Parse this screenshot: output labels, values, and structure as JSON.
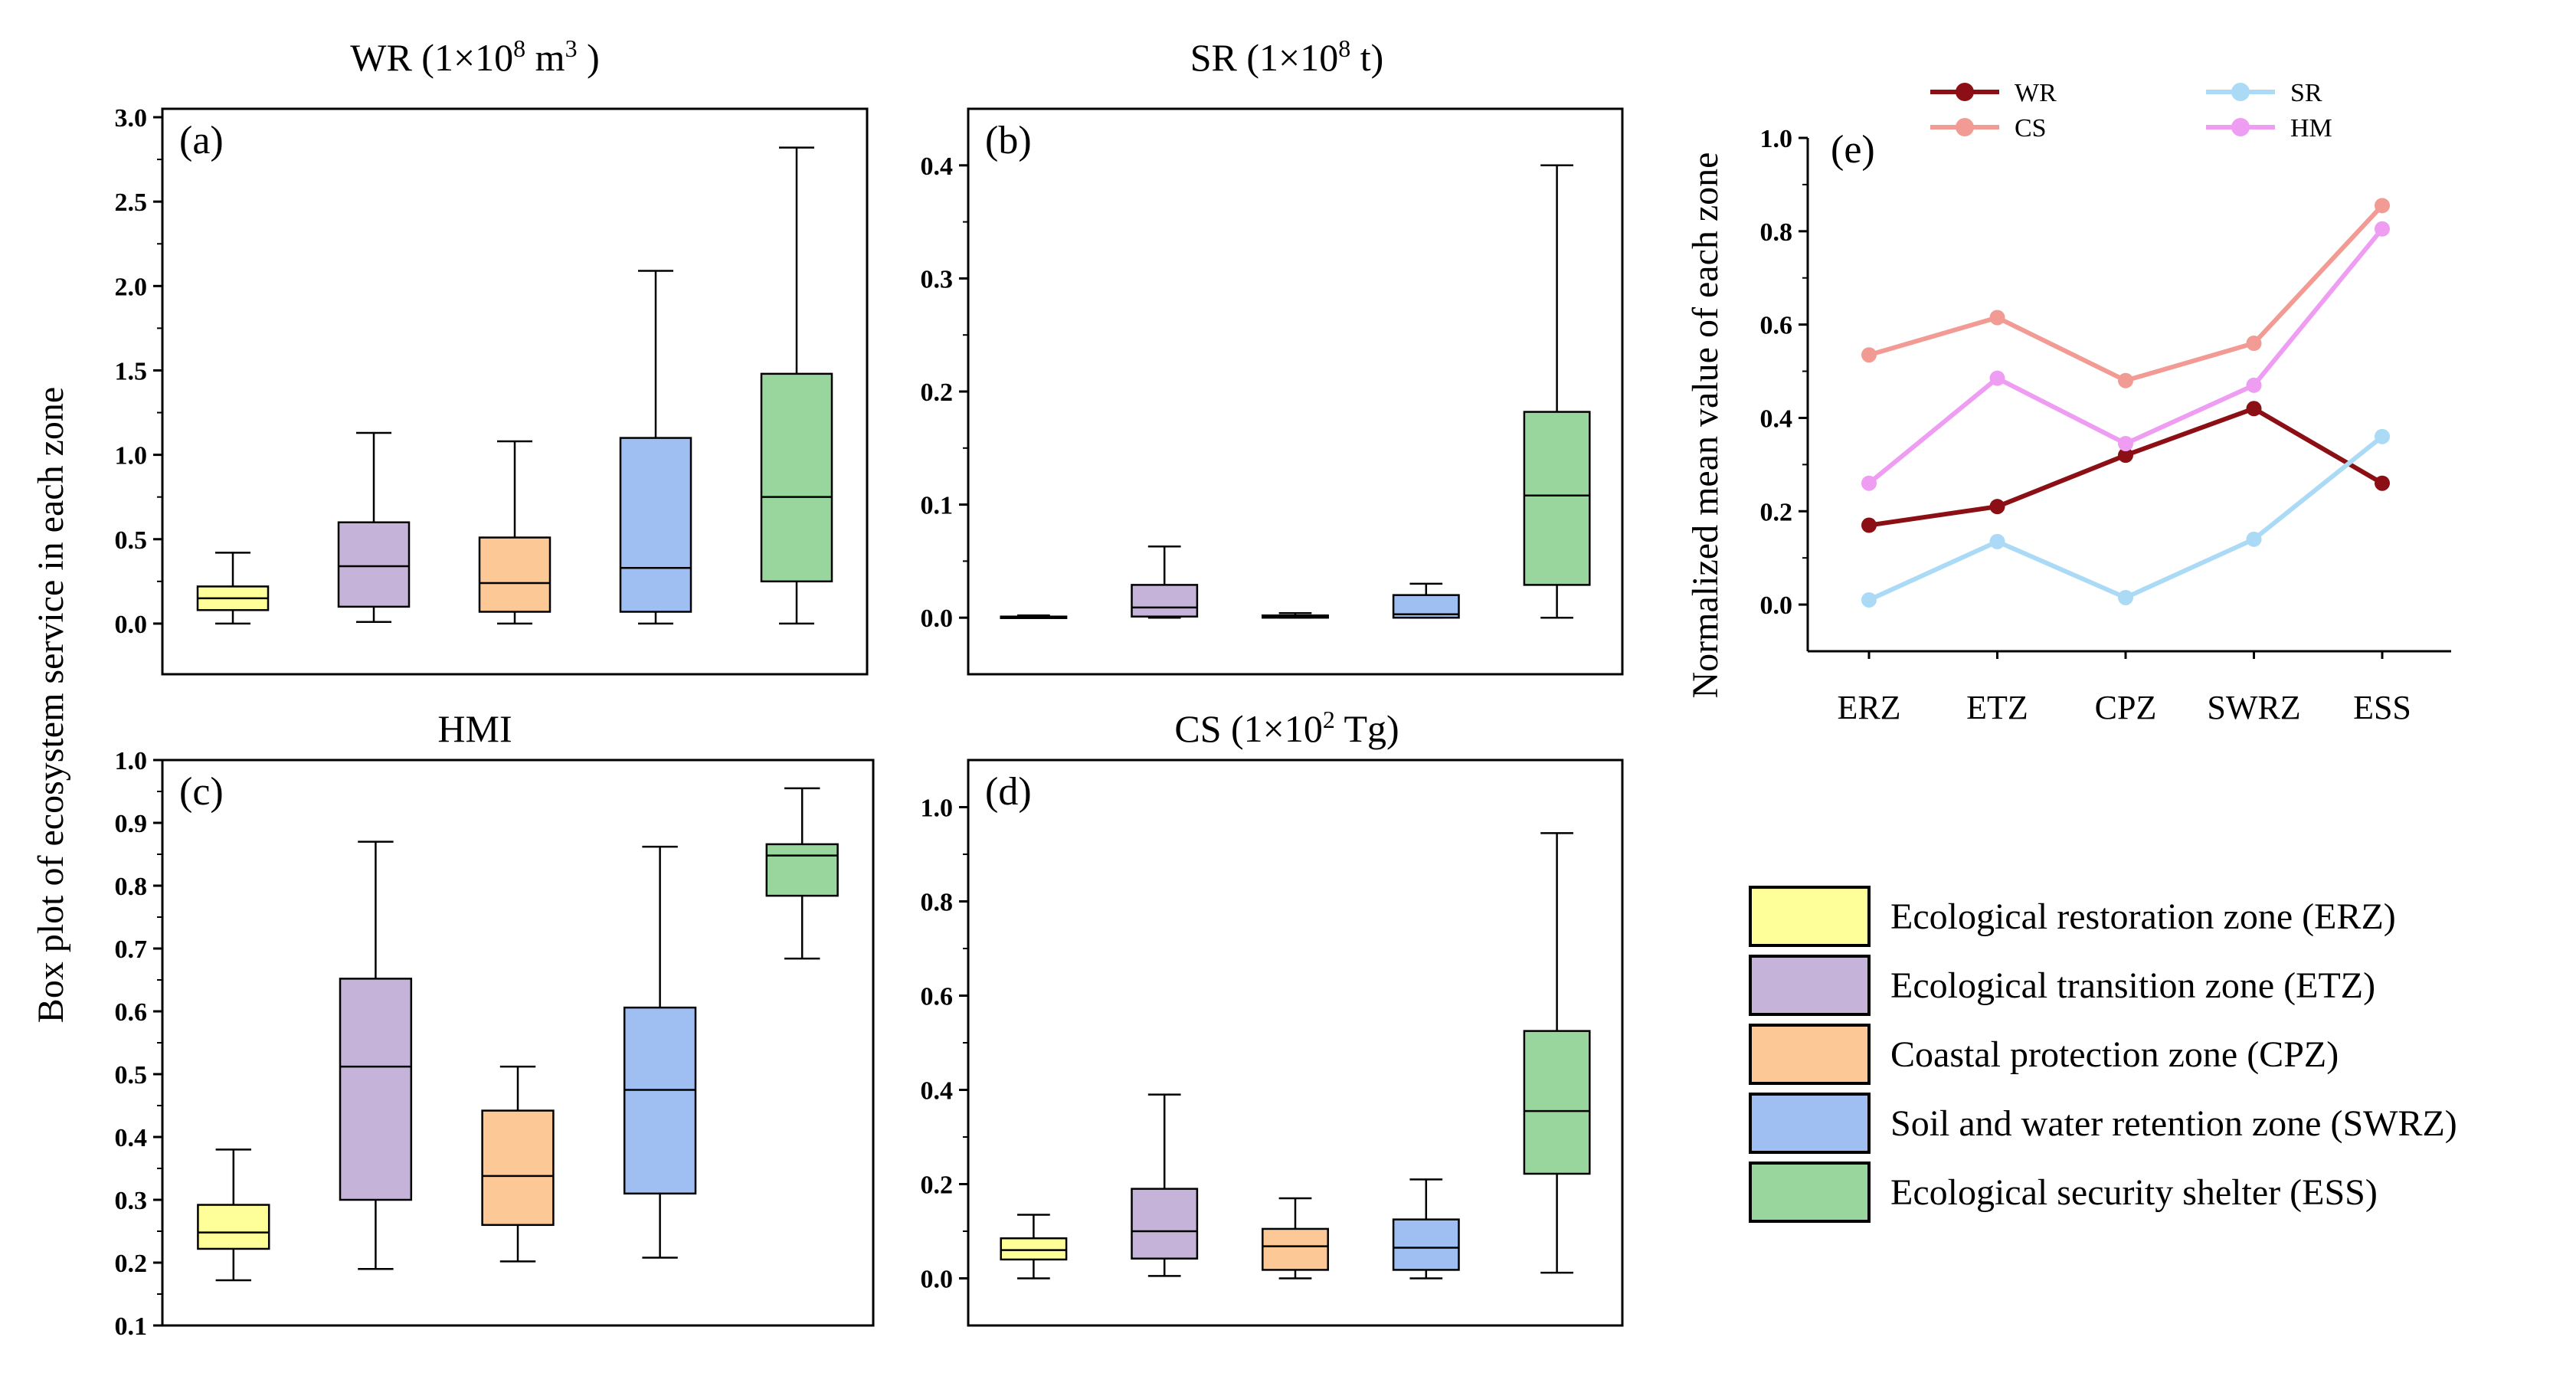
{
  "figure": {
    "y_axis_label": "Box plot of ecosystem service in each zone"
  },
  "zones": [
    {
      "code": "ERZ",
      "name": "Ecological restoration zone (ERZ)",
      "color": "#ffff99"
    },
    {
      "code": "ETZ",
      "name": "Ecological transition zone (ETZ)",
      "color": "#c5b3d9"
    },
    {
      "code": "CPZ",
      "name": "Coastal protection zone (CPZ)",
      "color": "#fcc996"
    },
    {
      "code": "SWRZ",
      "name": "Soil and water retention zone (SWRZ)",
      "color": "#9fbef2"
    },
    {
      "code": "ESS",
      "name": "Ecological security shelter (ESS)",
      "color": "#99d69d"
    }
  ],
  "chart_data": [
    {
      "id": "a",
      "panel_label": "(a)",
      "type": "box",
      "title_main": "WR (1×10",
      "title_sup": "8",
      "title_tail": " m",
      "title_sup2": "3",
      "title_end": " )",
      "ylim": [
        -0.3,
        3.05
      ],
      "ticks": [
        "0.0",
        "0.5",
        "1.0",
        "1.5",
        "2.0",
        "2.5",
        "3.0"
      ],
      "tick_values": [
        0,
        0.5,
        1.0,
        1.5,
        2.0,
        2.5,
        3.0
      ],
      "boxes": [
        {
          "zone": "ERZ",
          "min": 0.0,
          "q1": 0.08,
          "median": 0.15,
          "q3": 0.22,
          "max": 0.42
        },
        {
          "zone": "ETZ",
          "min": 0.01,
          "q1": 0.1,
          "median": 0.34,
          "q3": 0.6,
          "max": 1.13
        },
        {
          "zone": "CPZ",
          "min": 0.0,
          "q1": 0.07,
          "median": 0.24,
          "q3": 0.51,
          "max": 1.08
        },
        {
          "zone": "SWRZ",
          "min": 0.0,
          "q1": 0.07,
          "median": 0.33,
          "q3": 1.1,
          "max": 2.09
        },
        {
          "zone": "ESS",
          "min": 0.0,
          "q1": 0.25,
          "median": 0.75,
          "q3": 1.48,
          "max": 2.82
        }
      ]
    },
    {
      "id": "b",
      "panel_label": "(b)",
      "type": "box",
      "title_main": "SR (1×10",
      "title_sup": "8",
      "title_tail": " t)",
      "title_sup2": "",
      "title_end": "",
      "ylim": [
        -0.05,
        0.45
      ],
      "ticks": [
        "0.0",
        "0.1",
        "0.2",
        "0.3",
        "0.4"
      ],
      "tick_values": [
        0,
        0.1,
        0.2,
        0.3,
        0.4
      ],
      "boxes": [
        {
          "zone": "ERZ",
          "min": 0.0,
          "q1": 0.0,
          "median": 0.0,
          "q3": 0.001,
          "max": 0.002
        },
        {
          "zone": "ETZ",
          "min": 0.0,
          "q1": 0.001,
          "median": 0.009,
          "q3": 0.029,
          "max": 0.063
        },
        {
          "zone": "CPZ",
          "min": 0.0,
          "q1": 0.0,
          "median": 0.001,
          "q3": 0.002,
          "max": 0.004
        },
        {
          "zone": "SWRZ",
          "min": 0.0,
          "q1": 0.0,
          "median": 0.003,
          "q3": 0.02,
          "max": 0.03
        },
        {
          "zone": "ESS",
          "min": 0.0,
          "q1": 0.029,
          "median": 0.108,
          "q3": 0.182,
          "max": 0.4
        }
      ]
    },
    {
      "id": "c",
      "panel_label": "(c)",
      "type": "box",
      "title_main": "HMI",
      "title_sup": "",
      "title_tail": "",
      "title_sup2": "",
      "title_end": "",
      "ylim": [
        0.1,
        1.0
      ],
      "ticks": [
        "0.1",
        "0.2",
        "0.3",
        "0.4",
        "0.5",
        "0.6",
        "0.7",
        "0.8",
        "0.9",
        "1.0"
      ],
      "tick_values": [
        0.1,
        0.2,
        0.3,
        0.4,
        0.5,
        0.6,
        0.7,
        0.8,
        0.9,
        1.0
      ],
      "boxes": [
        {
          "zone": "ERZ",
          "min": 0.172,
          "q1": 0.222,
          "median": 0.248,
          "q3": 0.292,
          "max": 0.38
        },
        {
          "zone": "ETZ",
          "min": 0.19,
          "q1": 0.3,
          "median": 0.512,
          "q3": 0.652,
          "max": 0.87
        },
        {
          "zone": "CPZ",
          "min": 0.202,
          "q1": 0.26,
          "median": 0.338,
          "q3": 0.442,
          "max": 0.512
        },
        {
          "zone": "SWRZ",
          "min": 0.208,
          "q1": 0.31,
          "median": 0.475,
          "q3": 0.606,
          "max": 0.862
        },
        {
          "zone": "ESS",
          "min": 0.684,
          "q1": 0.784,
          "median": 0.848,
          "q3": 0.866,
          "max": 0.955
        }
      ]
    },
    {
      "id": "d",
      "panel_label": "(d)",
      "type": "box",
      "title_main": "CS (1×10",
      "title_sup": "2",
      "title_tail": " Tg)",
      "title_sup2": "",
      "title_end": "",
      "ylim": [
        -0.1,
        1.1
      ],
      "ticks": [
        "0.0",
        "0.2",
        "0.4",
        "0.6",
        "0.8",
        "1.0"
      ],
      "tick_values": [
        0,
        0.2,
        0.4,
        0.6,
        0.8,
        1.0
      ],
      "boxes": [
        {
          "zone": "ERZ",
          "min": 0.0,
          "q1": 0.04,
          "median": 0.06,
          "q3": 0.085,
          "max": 0.135
        },
        {
          "zone": "ETZ",
          "min": 0.005,
          "q1": 0.042,
          "median": 0.1,
          "q3": 0.19,
          "max": 0.39
        },
        {
          "zone": "CPZ",
          "min": 0.0,
          "q1": 0.018,
          "median": 0.068,
          "q3": 0.105,
          "max": 0.17
        },
        {
          "zone": "SWRZ",
          "min": 0.0,
          "q1": 0.018,
          "median": 0.065,
          "q3": 0.125,
          "max": 0.21
        },
        {
          "zone": "ESS",
          "min": 0.012,
          "q1": 0.222,
          "median": 0.355,
          "q3": 0.525,
          "max": 0.945
        }
      ]
    },
    {
      "id": "e",
      "panel_label": "(e)",
      "type": "line",
      "ylabel": "Normalized mean value of  each zone",
      "categories": [
        "ERZ",
        "ETZ",
        "CPZ",
        "SWRZ",
        "ESS"
      ],
      "ylim": [
        -0.1,
        1.0
      ],
      "ticks": [
        "0.0",
        "0.2",
        "0.4",
        "0.6",
        "0.8",
        "1.0"
      ],
      "tick_values": [
        0,
        0.2,
        0.4,
        0.6,
        0.8,
        1.0
      ],
      "series": [
        {
          "name": "WR",
          "color": "#8b0f14",
          "values": [
            0.17,
            0.21,
            0.32,
            0.42,
            0.26
          ]
        },
        {
          "name": "CS",
          "color": "#f29a94",
          "values": [
            0.535,
            0.615,
            0.48,
            0.56,
            0.855
          ]
        },
        {
          "name": "SR",
          "color": "#aadaf5",
          "values": [
            0.01,
            0.135,
            0.015,
            0.14,
            0.36
          ]
        },
        {
          "name": "HM",
          "color": "#ee9df2",
          "values": [
            0.26,
            0.485,
            0.345,
            0.47,
            0.805
          ]
        }
      ]
    }
  ]
}
